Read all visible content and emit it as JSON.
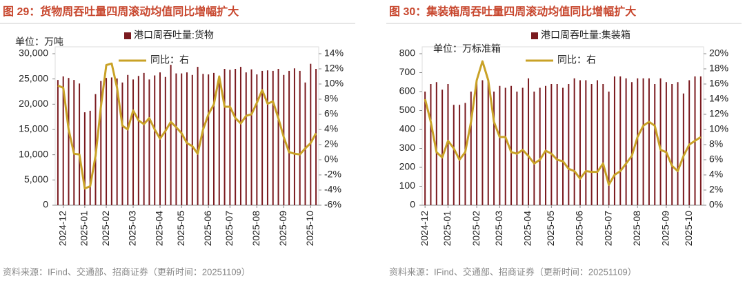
{
  "chart_data": [
    {
      "type": "bar_line",
      "title": "图 29：货物周吞吐量四周滚动均值同比增幅扩大",
      "unit_label": "单位：万吨",
      "source": "资料来源：IFind、交通部、招商证券（更新时间：20251109）",
      "categories": [
        null,
        "2024-12",
        null,
        null,
        null,
        "2025-01",
        null,
        null,
        null,
        "2025-02",
        null,
        null,
        null,
        null,
        "2025-03",
        null,
        null,
        null,
        null,
        "2025-04",
        null,
        null,
        null,
        "2025-05",
        null,
        null,
        null,
        null,
        "2025-06",
        null,
        null,
        null,
        "2025-07",
        null,
        null,
        null,
        null,
        "2025-08",
        null,
        null,
        null,
        null,
        "2025-09",
        null,
        null,
        null,
        null,
        "2025-10",
        null
      ],
      "series": [
        {
          "name": "港口周吞吐量:货物",
          "type": "bar",
          "color": "#7a1a1f",
          "values": [
            24800,
            25500,
            25200,
            24800,
            24100,
            18400,
            18700,
            22000,
            24600,
            25200,
            25300,
            25100,
            24300,
            25800,
            24900,
            25600,
            26200,
            24900,
            25700,
            26300,
            25400,
            27800,
            26100,
            26100,
            26300,
            25800,
            27400,
            26000,
            25900,
            26200,
            25500,
            27000,
            26800,
            27000,
            27400,
            26300,
            26900,
            25900,
            26600,
            26700,
            26600,
            27000,
            25800,
            26600,
            27100,
            26600,
            24300,
            28000,
            27000
          ]
        },
        {
          "name": "同比：右",
          "type": "line",
          "axis": "y2",
          "color": "#c9a227",
          "values": [
            9.8,
            9.5,
            4.0,
            0.8,
            0.7,
            -3.8,
            -3.5,
            0.5,
            7.0,
            12.5,
            12.7,
            9.5,
            4.5,
            4.0,
            6.5,
            5.2,
            4.7,
            5.5,
            4.0,
            2.8,
            3.8,
            5.0,
            4.3,
            3.5,
            2.2,
            1.8,
            0.8,
            4.0,
            6.0,
            7.3,
            11.0,
            7.0,
            7.0,
            5.5,
            4.8,
            5.8,
            6.0,
            7.5,
            9.2,
            7.4,
            7.7,
            5.5,
            3.0,
            1.0,
            0.8,
            0.7,
            1.5,
            2.2,
            3.5
          ]
        }
      ],
      "ylim": [
        0,
        30000
      ],
      "yticks": [
        0,
        {
          "value": 5000,
          "label": "5,000"
        },
        {
          "value": 10000,
          "label": "10,000"
        },
        {
          "value": 15000,
          "label": "15,000"
        },
        {
          "value": 20000,
          "label": "20,000"
        },
        {
          "value": 25000,
          "label": "25,000"
        },
        {
          "value": 30000,
          "label": "30,000"
        }
      ],
      "y2lim": [
        -6,
        14
      ],
      "y2ticks": [
        {
          "value": -6,
          "label": "-6%"
        },
        {
          "value": -4,
          "label": "-4%"
        },
        {
          "value": -2,
          "label": "-2%"
        },
        {
          "value": 0,
          "label": "0%"
        },
        {
          "value": 2,
          "label": "2%"
        },
        {
          "value": 4,
          "label": "4%"
        },
        {
          "value": 6,
          "label": "6%"
        },
        {
          "value": 8,
          "label": "8%"
        },
        {
          "value": 10,
          "label": "10%"
        },
        {
          "value": 12,
          "label": "12%"
        },
        {
          "value": 14,
          "label": "14%"
        }
      ]
    },
    {
      "type": "bar_line",
      "title": "图 30：集装箱周吞吐量四周滚动均值同比增幅扩大",
      "unit_label": "单位：万标准箱",
      "source": "资料来源：IFind、交通部、招商证券（更新时间：20251109）",
      "categories": [
        "2024-12",
        null,
        null,
        null,
        "2025-01",
        null,
        null,
        null,
        null,
        "2025-02",
        null,
        null,
        null,
        "2025-03",
        null,
        null,
        null,
        null,
        "2025-04",
        null,
        null,
        null,
        "2025-05",
        null,
        null,
        null,
        null,
        "2025-06",
        null,
        null,
        null,
        null,
        "2025-07",
        null,
        null,
        null,
        null,
        "2025-08",
        null,
        null,
        null,
        null,
        "2025-09",
        null,
        null,
        null,
        "2025-10",
        null,
        null
      ],
      "series": [
        {
          "name": "港口周吞吐量:集装箱",
          "type": "bar",
          "color": "#7a1a1f",
          "values": [
            600,
            640,
            650,
            610,
            640,
            530,
            530,
            540,
            600,
            650,
            660,
            650,
            600,
            630,
            620,
            630,
            600,
            620,
            670,
            600,
            620,
            630,
            640,
            640,
            620,
            640,
            670,
            660,
            660,
            640,
            660,
            640,
            600,
            680,
            680,
            670,
            650,
            670,
            670,
            670,
            640,
            670,
            650,
            640,
            650,
            590,
            660,
            680,
            680
          ]
        },
        {
          "name": "同比：右",
          "type": "line",
          "axis": "y2",
          "color": "#c9a227",
          "values": [
            14.0,
            11.0,
            7.0,
            6.3,
            8.5,
            7.5,
            6.0,
            7.0,
            11.0,
            16.5,
            19.0,
            16.5,
            11.0,
            9.0,
            9.0,
            7.0,
            6.8,
            7.3,
            6.5,
            5.5,
            6.0,
            7.2,
            6.8,
            6.0,
            5.8,
            4.8,
            4.5,
            3.5,
            4.5,
            4.4,
            4.4,
            5.5,
            2.7,
            4.0,
            4.5,
            5.5,
            6.5,
            9.0,
            10.5,
            11.0,
            10.5,
            7.3,
            7.0,
            5.2,
            4.5,
            6.5,
            8.0,
            8.5,
            9.0
          ]
        }
      ],
      "ylim": [
        0,
        800
      ],
      "yticks": [
        0,
        100,
        200,
        300,
        400,
        500,
        600,
        700,
        800
      ],
      "y2lim": [
        0,
        20
      ],
      "y2ticks": [
        {
          "value": 0,
          "label": "0%"
        },
        {
          "value": 2,
          "label": "2%"
        },
        {
          "value": 4,
          "label": "4%"
        },
        {
          "value": 6,
          "label": "6%"
        },
        {
          "value": 8,
          "label": "8%"
        },
        {
          "value": 10,
          "label": "10%"
        },
        {
          "value": 12,
          "label": "12%"
        },
        {
          "value": 14,
          "label": "14%"
        },
        {
          "value": 16,
          "label": "16%"
        },
        {
          "value": 18,
          "label": "18%"
        },
        {
          "value": 20,
          "label": "20%"
        }
      ]
    }
  ]
}
